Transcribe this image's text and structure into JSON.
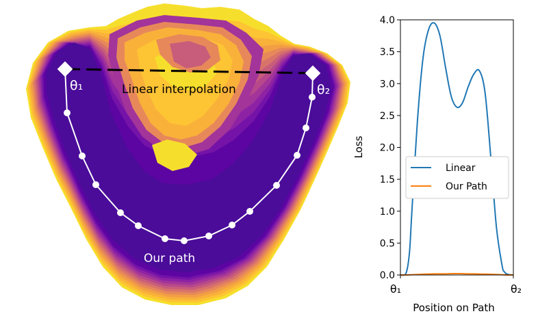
{
  "chart_data": [
    {
      "type": "contour",
      "annotations": {
        "theta1": "θ₁",
        "theta2": "θ₂",
        "linear_label": "Linear interpolation",
        "path_label": "Our path"
      },
      "colors": {
        "levels": [
          "#4a0c99",
          "#5c05a2",
          "#7513a8",
          "#8d23a4",
          "#a2349a",
          "#b6488b",
          "#c85d7b",
          "#d8736a",
          "#e7885a",
          "#f29e45",
          "#f9b13a",
          "#fdc433",
          "#f6df2c"
        ],
        "path": "#ffffff",
        "linear": "#000000"
      }
    },
    {
      "type": "line",
      "xlabel": "Position on Path",
      "ylabel": "Loss",
      "xticklabels": [
        "θ₁",
        "θ₂"
      ],
      "ylim": [
        0.0,
        4.0
      ],
      "yticks": [
        "0.0",
        "0.5",
        "1.0",
        "1.5",
        "2.0",
        "2.5",
        "3.0",
        "3.5",
        "4.0"
      ],
      "legend_position": "center-right",
      "x": [
        0.0,
        0.05,
        0.08,
        0.1,
        0.15,
        0.2,
        0.25,
        0.3,
        0.35,
        0.4,
        0.45,
        0.5,
        0.55,
        0.6,
        0.65,
        0.7,
        0.75,
        0.8,
        0.85,
        0.9,
        0.92,
        0.95,
        1.0
      ],
      "series": [
        {
          "name": "Linear",
          "color": "#1f77b4",
          "values": [
            0.0,
            0.03,
            0.35,
            0.95,
            2.4,
            3.4,
            3.85,
            3.95,
            3.75,
            3.25,
            2.8,
            2.63,
            2.7,
            2.95,
            3.15,
            3.2,
            2.85,
            1.85,
            0.75,
            0.15,
            0.05,
            0.01,
            0.0
          ]
        },
        {
          "name": "Our Path",
          "color": "#ff7f0e",
          "values": [
            0.0,
            0.0,
            0.002,
            0.004,
            0.008,
            0.012,
            0.015,
            0.017,
            0.018,
            0.018,
            0.02,
            0.022,
            0.02,
            0.018,
            0.017,
            0.015,
            0.013,
            0.011,
            0.008,
            0.004,
            0.002,
            0.0,
            0.0
          ]
        }
      ]
    }
  ]
}
